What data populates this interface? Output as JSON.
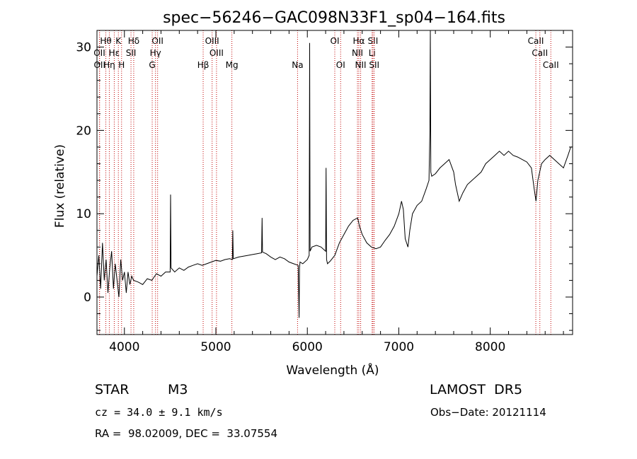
{
  "chart_data": {
    "type": "line",
    "title": "spec−56246−GAC098N33F1_sp04−164.fits",
    "xlabel": "Wavelength (Å)",
    "ylabel": "Flux (relative)",
    "xlim": [
      3700,
      8900
    ],
    "ylim": [
      -4.5,
      32
    ],
    "xticks": [
      4000,
      5000,
      6000,
      7000,
      8000
    ],
    "yticks": [
      0,
      10,
      20,
      30
    ],
    "grid": false,
    "series": [
      {
        "values_note": "",
        "x": [
          3700,
          3720,
          3740,
          3760,
          3780,
          3800,
          3820,
          3840,
          3860,
          3880,
          3900,
          3920,
          3940,
          3960,
          3980,
          4000,
          4020,
          4040,
          4060,
          4080,
          4100,
          4150,
          4200,
          4250,
          4300,
          4350,
          4400,
          4450,
          4500,
          4505,
          4510,
          4550,
          4600,
          4650,
          4700,
          4750,
          4800,
          4850,
          4900,
          4950,
          5000,
          5050,
          5100,
          5150,
          5180,
          5185,
          5190,
          5250,
          5300,
          5350,
          5400,
          5450,
          5500,
          5505,
          5510,
          5550,
          5600,
          5650,
          5700,
          5750,
          5800,
          5850,
          5900,
          5910,
          5915,
          5920,
          5950,
          6000,
          6020,
          6025,
          6030,
          6050,
          6100,
          6150,
          6200,
          6205,
          6210,
          6220,
          6250,
          6300,
          6350,
          6400,
          6450,
          6500,
          6550,
          6570,
          6600,
          6650,
          6700,
          6750,
          6800,
          6850,
          6900,
          6950,
          7000,
          7030,
          7050,
          7070,
          7100,
          7120,
          7150,
          7200,
          7250,
          7300,
          7330,
          7340,
          7345,
          7350,
          7360,
          7400,
          7450,
          7500,
          7550,
          7600,
          7620,
          7650,
          7660,
          7700,
          7750,
          7800,
          7850,
          7900,
          7950,
          8000,
          8050,
          8100,
          8150,
          8200,
          8250,
          8300,
          8350,
          8400,
          8450,
          8480,
          8500,
          8520,
          8540,
          8560,
          8600,
          8650,
          8700,
          8750,
          8800,
          8850,
          8880,
          8900
        ],
        "y": [
          2.5,
          5.0,
          1.0,
          6.5,
          2.0,
          4.5,
          0.5,
          3.5,
          5.5,
          1.0,
          4.0,
          2.0,
          0.0,
          4.5,
          2.0,
          3.0,
          0.5,
          3.0,
          1.5,
          2.5,
          2.0,
          1.8,
          1.5,
          2.2,
          2.0,
          2.8,
          2.5,
          3.0,
          3.0,
          12.3,
          3.5,
          3.0,
          3.5,
          3.2,
          3.6,
          3.8,
          4.0,
          3.8,
          4.0,
          4.2,
          4.4,
          4.3,
          4.5,
          4.6,
          4.5,
          8.0,
          4.6,
          4.8,
          4.9,
          5.0,
          5.1,
          5.2,
          5.3,
          9.5,
          5.4,
          5.2,
          4.8,
          4.5,
          4.8,
          4.6,
          4.2,
          4.0,
          3.8,
          -2.5,
          3.5,
          4.2,
          4.0,
          4.5,
          5.0,
          30.5,
          5.5,
          6.0,
          6.2,
          6.0,
          5.5,
          15.5,
          4.5,
          4.0,
          4.3,
          5.0,
          6.5,
          7.5,
          8.5,
          9.2,
          9.5,
          8.5,
          7.5,
          6.5,
          6.0,
          5.8,
          6.0,
          6.8,
          7.5,
          8.5,
          10.0,
          11.5,
          10.5,
          7.0,
          6.0,
          8.0,
          10.0,
          11.0,
          11.5,
          13.0,
          14.0,
          20.0,
          32.0,
          15.0,
          14.5,
          14.8,
          15.5,
          16.0,
          16.5,
          15.0,
          13.5,
          12.0,
          11.5,
          12.5,
          13.5,
          14.0,
          14.5,
          15.0,
          16.0,
          16.5,
          17.0,
          17.5,
          17.0,
          17.5,
          17.0,
          16.8,
          16.5,
          16.2,
          15.5,
          13.0,
          11.5,
          14.0,
          15.0,
          16.0,
          16.5,
          17.0,
          16.5,
          16.0,
          15.5,
          17.0,
          18.0,
          18.0
        ]
      }
    ],
    "line_markers": [
      {
        "label": "Hθ",
        "x": 3797,
        "row": 0
      },
      {
        "label": "K",
        "x": 3934,
        "row": 0
      },
      {
        "label": "Hδ",
        "x": 4102,
        "row": 0
      },
      {
        "label": "OII",
        "x": 4363,
        "row": 0
      },
      {
        "label": "OIII",
        "x": 4959,
        "row": 0
      },
      {
        "label": "Na",
        "x": 5893,
        "row": 2
      },
      {
        "label": "OI",
        "x": 6300,
        "row": 0
      },
      {
        "label": "Hα",
        "x": 6563,
        "row": 0
      },
      {
        "label": "SII",
        "x": 6717,
        "row": 0
      },
      {
        "label": "OII",
        "x": 3727,
        "row": 1
      },
      {
        "label": "Hε",
        "x": 3889,
        "row": 1
      },
      {
        "label": "SII",
        "x": 4072,
        "row": 1
      },
      {
        "label": "Hγ",
        "x": 4340,
        "row": 1
      },
      {
        "label": "OIII",
        "x": 5007,
        "row": 1
      },
      {
        "label": "NII",
        "x": 6548,
        "row": 1
      },
      {
        "label": "Li",
        "x": 6708,
        "row": 1
      },
      {
        "label": "OII",
        "x": 3729,
        "row": 2
      },
      {
        "label": "Hη",
        "x": 3835,
        "row": 2
      },
      {
        "label": "H",
        "x": 3969,
        "row": 2
      },
      {
        "label": "G",
        "x": 4304,
        "row": 2
      },
      {
        "label": "Hβ",
        "x": 4861,
        "row": 2
      },
      {
        "label": "Mg",
        "x": 5175,
        "row": 2
      },
      {
        "label": "OI",
        "x": 6364,
        "row": 2
      },
      {
        "label": "NII",
        "x": 6583,
        "row": 2
      },
      {
        "label": "SII",
        "x": 6731,
        "row": 2
      },
      {
        "label": "CaII",
        "x": 8498,
        "row": 0
      },
      {
        "label": "CaII",
        "x": 8542,
        "row": 1
      },
      {
        "label": "CaII",
        "x": 8662,
        "row": 2
      }
    ]
  },
  "info": {
    "class_label": "STAR",
    "subclass": "M3",
    "survey": "LAMOST  DR5",
    "cz": "cz = 34.0 ± 9.1 km/s",
    "obs_date": "Obs−Date: 20121114",
    "coords": "RA =  98.02009, DEC =  33.07554"
  },
  "colors": {
    "spectrum": "#000000",
    "marker_line": "#c00000",
    "axis": "#000000"
  }
}
